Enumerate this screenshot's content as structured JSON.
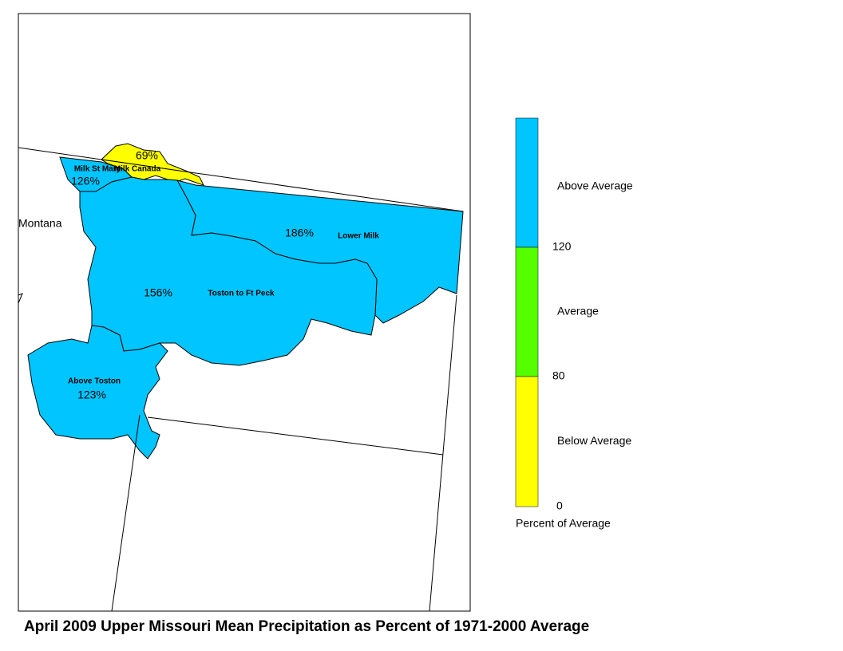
{
  "title": "April 2009 Upper Missouri Mean Precipitation as Percent of 1971-2000 Average",
  "state_label": "Montana",
  "basins": [
    {
      "name": "Milk St Mary",
      "value_label": "126%",
      "color": "#00c5ff"
    },
    {
      "name": "Milk Canada",
      "value_label": "69%",
      "color": "#ffff00"
    },
    {
      "name": "Lower Milk",
      "value_label": "186%",
      "color": "#00c5ff"
    },
    {
      "name": "Toston to Ft Peck",
      "value_label": "156%",
      "color": "#00c5ff"
    },
    {
      "name": "Above Toston",
      "value_label": "123%",
      "color": "#00c5ff"
    }
  ],
  "legend": {
    "title": "Percent of Average",
    "classes": [
      {
        "label": "Above Average",
        "color": "#00c5ff"
      },
      {
        "label": "Average",
        "color": "#55ff00"
      },
      {
        "label": "Below Average",
        "color": "#ffff00"
      }
    ],
    "breaks": [
      120,
      80,
      0
    ]
  }
}
